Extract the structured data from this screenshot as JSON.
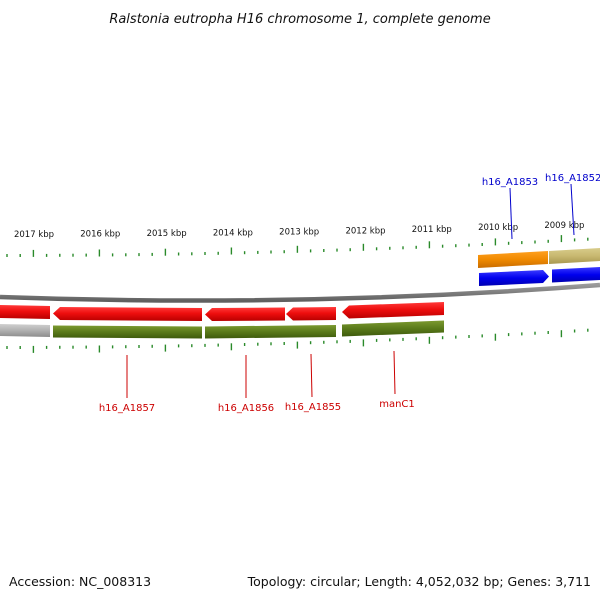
{
  "title": "Ralstonia eutropha H16 chromosome 1, complete genome",
  "footer": {
    "accession": "Accession: NC_008313",
    "summary": "Topology: circular; Length: 4,052,032 bp; Genes: 3,711"
  },
  "colors": {
    "reverse_cds": "#ee1111",
    "reverse_gene": "#5a7a1a",
    "forward_cds": "#0000ee",
    "forward_gene_a": "#f08a00",
    "forward_gene_b": "#c8b870",
    "grey_feature": "#b0b0b0",
    "backbone": "#7a7a7a",
    "ticks": "#2a8a2a",
    "label_reverse": "#cc0000",
    "label_forward": "#0000cc"
  },
  "scale": {
    "ticks": [
      {
        "label": "2017 kbp"
      },
      {
        "label": "2016 kbp"
      },
      {
        "label": "2015 kbp"
      },
      {
        "label": "2014 kbp"
      },
      {
        "label": "2013 kbp"
      },
      {
        "label": "2012 kbp"
      },
      {
        "label": "2011 kbp"
      },
      {
        "label": "2010 kbp"
      },
      {
        "label": "2009 kbp"
      }
    ]
  },
  "genes": {
    "forward": [
      {
        "label": "h16_A1853"
      },
      {
        "label": "h16_A1852"
      }
    ],
    "reverse": [
      {
        "label": "h16_A1857"
      },
      {
        "label": "h16_A1856"
      },
      {
        "label": "h16_A1855"
      },
      {
        "label": "manC1"
      }
    ]
  }
}
